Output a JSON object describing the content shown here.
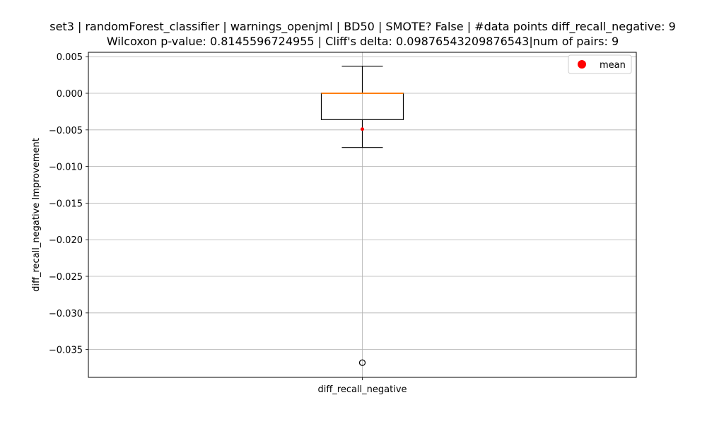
{
  "chart_data": {
    "type": "box",
    "title": "set3 | randomForest_classifier | warnings_openjml | BD50 | SMOTE? False | #data points diff_recall_negative: 9",
    "subtitle": "Wilcoxon p-value: 0.8145596724955 | Cliff's delta: 0.09876543209876543|num of pairs: 9",
    "xlabel": "",
    "ylabel": "diff_recall_negative Improvement",
    "categories": [
      "diff_recall_negative"
    ],
    "ylim": [
      -0.0388,
      0.0056
    ],
    "yticks": [
      0.005,
      0.0,
      -0.005,
      -0.01,
      -0.015,
      -0.02,
      -0.025,
      -0.03,
      -0.035
    ],
    "ytick_labels": [
      "0.005",
      "0.000",
      "−0.005",
      "−0.010",
      "−0.015",
      "−0.020",
      "−0.025",
      "−0.030",
      "−0.035"
    ],
    "grid": true,
    "legend": {
      "position": "top-right",
      "entries": [
        "mean"
      ]
    },
    "boxes": [
      {
        "category": "diff_recall_negative",
        "whisker_low": -0.0074,
        "q1": -0.0036,
        "median": 0.0,
        "q3": 0.0,
        "whisker_high": 0.0037,
        "mean": -0.0049,
        "outliers": [
          -0.0368
        ]
      }
    ],
    "colors": {
      "median": "#ff7f0e",
      "mean": "#ff0000",
      "box": "#000000",
      "grid": "#b0b0b0"
    }
  }
}
